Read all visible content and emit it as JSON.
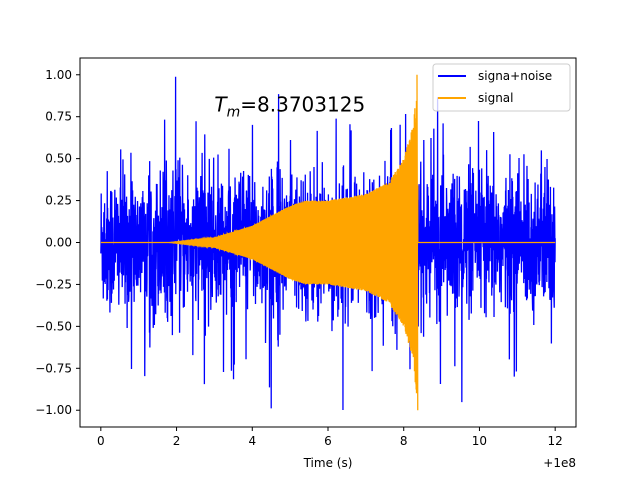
{
  "chart_data": {
    "type": "line",
    "title": "",
    "xlabel": "Time (s)",
    "ylabel": "",
    "x_offset_label": "+1e8",
    "xlim": [
      -0.55,
      12.55
    ],
    "ylim": [
      -1.1,
      1.1
    ],
    "x_ticks": [
      0,
      2,
      4,
      6,
      8,
      10,
      12
    ],
    "x_tick_labels": [
      "0",
      "2",
      "4",
      "6",
      "8",
      "10",
      "12"
    ],
    "y_ticks": [
      -1.0,
      -0.75,
      -0.5,
      -0.25,
      0.0,
      0.25,
      0.5,
      0.75,
      1.0
    ],
    "y_tick_labels": [
      "−1.00",
      "−0.75",
      "−0.50",
      "−0.25",
      "0.00",
      "0.25",
      "0.50",
      "0.75",
      "1.00"
    ],
    "grid": false,
    "legend_position": "top-right",
    "annotation": {
      "text_main": "T",
      "text_sub": "m",
      "text_rest": "=8.3703125",
      "x": 3.0,
      "y": 0.78
    },
    "series": [
      {
        "name": "signa+noise",
        "color": "#0000ff",
        "description": "noisy data: envelope ~±0.5 with spikes to about ±1.0, x from 0 to 12",
        "x_range": [
          0,
          12
        ],
        "noise_envelope": 0.5,
        "spike_max": 1.0
      },
      {
        "name": "signal",
        "color": "#ffa500",
        "description": "chirp signal: zero before ~1.8, amplitude grows to ~0.25 around x=5.2, then rises sharply to 1.0 at merger x=8.37, zero afterward",
        "x_range": [
          0,
          12
        ],
        "merger_time": 8.3703125,
        "envelope_points": [
          [
            0,
            0
          ],
          [
            1.8,
            0.0
          ],
          [
            3.0,
            0.03
          ],
          [
            4.0,
            0.1
          ],
          [
            5.0,
            0.22
          ],
          [
            5.4,
            0.25
          ],
          [
            6.0,
            0.25
          ],
          [
            7.0,
            0.29
          ],
          [
            7.6,
            0.36
          ],
          [
            8.0,
            0.5
          ],
          [
            8.25,
            0.7
          ],
          [
            8.37,
            1.0
          ]
        ]
      }
    ]
  }
}
